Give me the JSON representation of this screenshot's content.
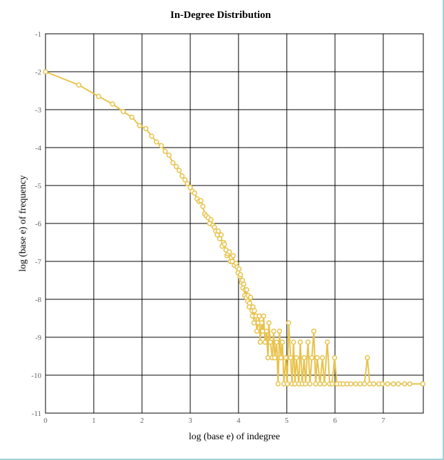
{
  "chart_data": {
    "type": "line",
    "title": "In-Degree Distribution",
    "x_label": "log (base e) of indegree",
    "y_label": "log (base e) of frequency",
    "xlim": [
      0,
      7.83
    ],
    "ylim": [
      -11,
      -1
    ],
    "xticks": [
      0,
      1,
      2,
      3,
      4,
      5,
      6,
      7
    ],
    "yticks": [
      -11,
      -10,
      -9,
      -8,
      -7,
      -6,
      -5,
      -4,
      -3,
      -2,
      -1
    ],
    "grid": true,
    "series": [
      {
        "color": "#e8c24a",
        "x": [
          0,
          0.69,
          1.1,
          1.39,
          1.61,
          1.79,
          1.95,
          2.08,
          2.2,
          2.3,
          2.4,
          2.48,
          2.56,
          2.64,
          2.71,
          2.77,
          2.83,
          2.89,
          2.94,
          3.0,
          3.04,
          3.09,
          3.14,
          3.18,
          3.22,
          3.26,
          3.3,
          3.33,
          3.37,
          3.4,
          3.43,
          3.47,
          3.5,
          3.53,
          3.56,
          3.58,
          3.61,
          3.64,
          3.66,
          3.69,
          3.71,
          3.74,
          3.76,
          3.78,
          3.81,
          3.83,
          3.85,
          3.87,
          3.89,
          3.91,
          3.95,
          3.97,
          3.99,
          4.01,
          4.03,
          4.04,
          4.06,
          4.08,
          4.09,
          4.11,
          4.13,
          4.14,
          4.16,
          4.17,
          4.19,
          4.2,
          4.22,
          4.23,
          4.25,
          4.28,
          4.29,
          4.3,
          4.32,
          4.33,
          4.36,
          4.38,
          4.41,
          4.43,
          4.45,
          4.48,
          4.5,
          4.52,
          4.55,
          4.58,
          4.61,
          4.63,
          4.66,
          4.7,
          4.73,
          4.75,
          4.79,
          4.82,
          4.85,
          4.88,
          4.91,
          4.94,
          4.98,
          5.01,
          5.04,
          5.08,
          5.11,
          5.14,
          5.17,
          5.2,
          5.25,
          5.28,
          5.32,
          5.36,
          5.39,
          5.44,
          5.48,
          5.52,
          5.56,
          5.6,
          5.63,
          5.69,
          5.74,
          5.78,
          5.84,
          5.89,
          5.94,
          5.99,
          6.04,
          6.11,
          6.17,
          6.25,
          6.33,
          6.43,
          6.52,
          6.61,
          6.67,
          6.72,
          6.8,
          6.91,
          6.98,
          7.09,
          7.21,
          7.31,
          7.44,
          7.55,
          7.82
        ],
        "values": [
          -2.0,
          -2.35,
          -2.65,
          -2.85,
          -3.05,
          -3.2,
          -3.42,
          -3.5,
          -3.7,
          -3.85,
          -3.95,
          -4.1,
          -4.2,
          -4.4,
          -4.5,
          -4.6,
          -4.75,
          -4.85,
          -4.95,
          -5.05,
          -5.15,
          -5.2,
          -5.35,
          -5.42,
          -5.4,
          -5.55,
          -5.75,
          -5.8,
          -5.85,
          -6.0,
          -5.9,
          -6.05,
          -6.1,
          -6.2,
          -6.3,
          -6.2,
          -6.4,
          -6.3,
          -6.6,
          -6.5,
          -6.55,
          -6.7,
          -6.85,
          -6.8,
          -6.75,
          -7.0,
          -6.9,
          -7.0,
          -6.85,
          -7.1,
          -7.05,
          -7.15,
          -7.3,
          -7.2,
          -7.4,
          -7.35,
          -7.55,
          -7.5,
          -7.7,
          -7.6,
          -7.9,
          -7.75,
          -7.95,
          -7.75,
          -8.05,
          -7.9,
          -8.2,
          -8.1,
          -7.95,
          -8.3,
          -8.44,
          -8.2,
          -8.62,
          -8.3,
          -8.44,
          -8.84,
          -8.62,
          -8.44,
          -9.13,
          -8.62,
          -8.84,
          -8.44,
          -9.13,
          -8.84,
          -9.54,
          -8.62,
          -9.13,
          -9.54,
          -8.84,
          -9.54,
          -9.13,
          -10.23,
          -8.84,
          -9.54,
          -9.13,
          -10.23,
          -9.54,
          -10.23,
          -8.62,
          -9.54,
          -10.23,
          -9.13,
          -10.23,
          -9.54,
          -10.23,
          -9.13,
          -10.23,
          -9.54,
          -10.23,
          -9.13,
          -10.23,
          -9.54,
          -8.84,
          -10.23,
          -9.54,
          -10.23,
          -9.54,
          -10.23,
          -9.13,
          -10.23,
          -10.23,
          -9.54,
          -10.23,
          -10.23,
          -10.23,
          -10.23,
          -10.23,
          -10.23,
          -10.23,
          -10.23,
          -9.54,
          -10.23,
          -10.23,
          -10.23,
          -10.23,
          -10.23,
          -10.23,
          -10.23,
          -10.23,
          -10.23,
          -10.23
        ]
      }
    ]
  }
}
